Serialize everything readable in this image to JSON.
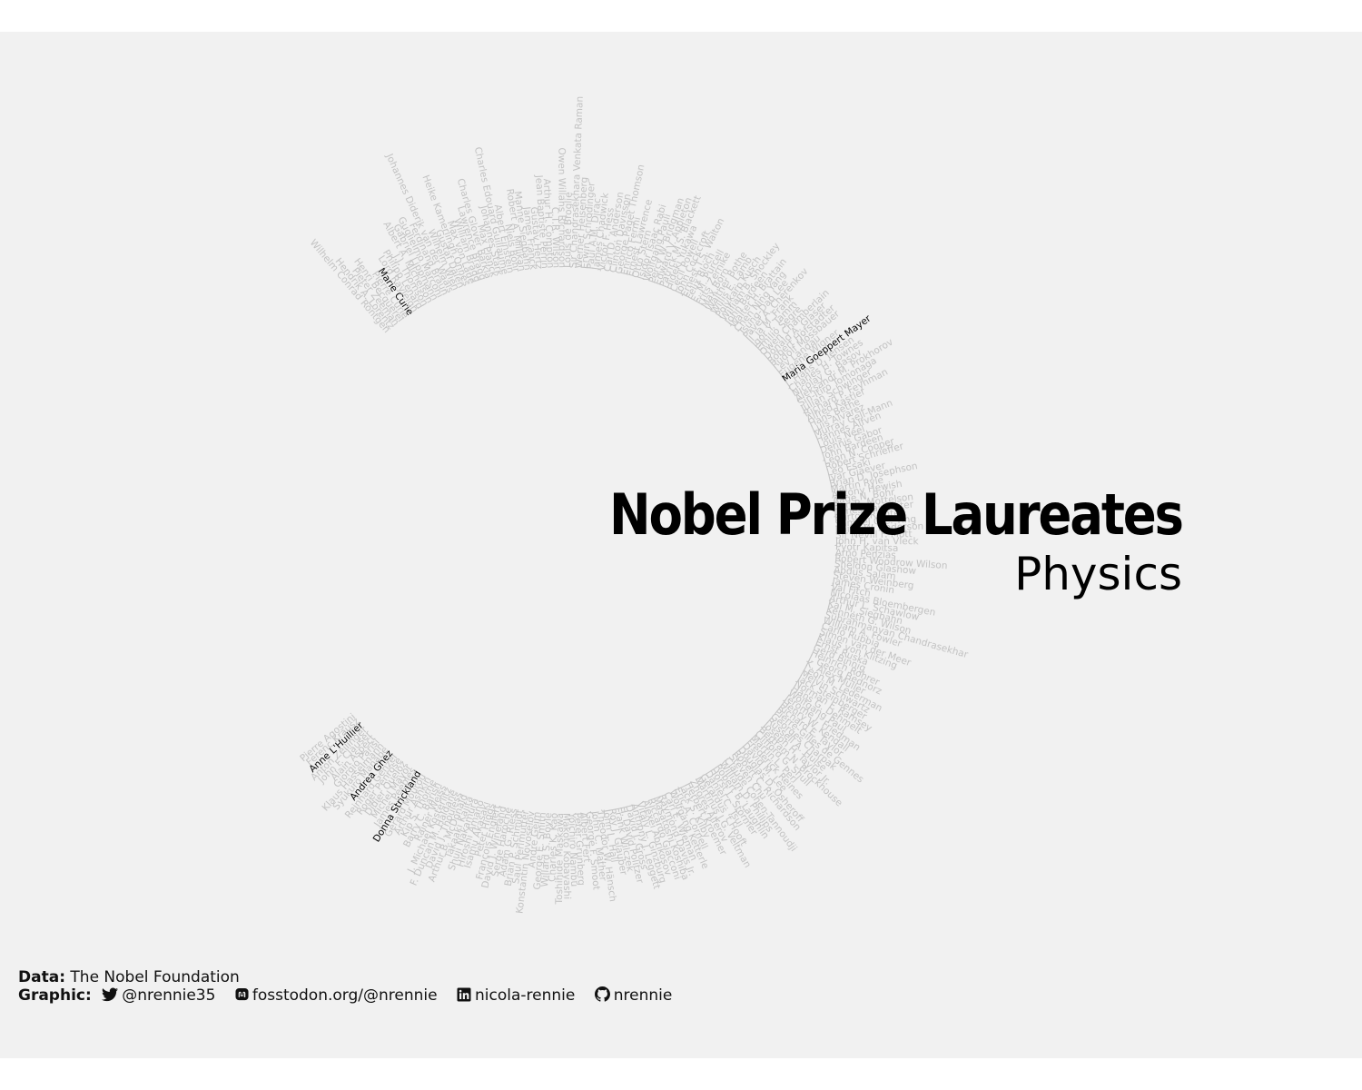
{
  "chart_data": {
    "type": "radial_text",
    "title": "Nobel Prize Laureates",
    "subtitle": "Physics",
    "arc_degrees": [
      -40,
      230
    ],
    "colors": {
      "default": "#c2c2c2",
      "highlight": "#000000",
      "background": "#f1f1f1"
    },
    "laureates_in_order": [
      "Wilhelm Conrad Röntgen",
      "Hendrik A. Lorentz",
      "Pieter Zeeman",
      "Henri Becquerel",
      "Pierre Curie",
      "Marie Curie",
      "Lord Rayleigh",
      "Philipp Lenard",
      "J.J. Thomson",
      "Albert A. Michelson",
      "Gabriel Lippmann",
      "Guglielmo Marconi",
      "Ferdinand Braun",
      "Johannes Diderik van der Waals",
      "Wilhelm Wien",
      "Gustaf Dalén",
      "Heike Kamerlingh Onnes",
      "Max von Laue",
      "William Bragg",
      "Lawrence Bragg",
      "Charles Glover Barkla",
      "Max Planck",
      "Johannes Stark",
      "Charles Edouard Guillaume",
      "Albert Einstein",
      "Niels Bohr",
      "Robert A. Millikan",
      "Manne Siegbahn",
      "James Franck",
      "Gustav Hertz",
      "Jean Baptiste Perrin",
      "Arthur H. Compton",
      "C.T.R. Wilson",
      "Owen Willans Richardson",
      "Louis de Broglie",
      "Sir Chandrasekhara Venkata Raman",
      "Werner Heisenberg",
      "Erwin Schrödinger",
      "Paul A.M. Dirac",
      "James Chadwick",
      "Victor F. Hess",
      "Carl D. Anderson",
      "Clinton Davisson",
      "George Paget Thomson",
      "Enrico Fermi",
      "Ernest Lawrence",
      "Otto Stern",
      "Isidor Isaac Rabi",
      "Wolfgang Pauli",
      "Percy W. Bridgman",
      "Edward V. Appleton",
      "Patrick M.S. Blackett",
      "Hideki Yukawa",
      "Cecil Powell",
      "John Cockcroft",
      "Ernest T.S. Walton",
      "Felix Bloch",
      "E. M. Purcell",
      "Frits Zernike",
      "Max Born",
      "Walther Bothe",
      "Willis E. Lamb",
      "Polykarp Kusch",
      "William B. Shockley",
      "John Bardeen",
      "Walter H. Brattain",
      "Chen Ning Yang",
      "Tsung-Dao Lee",
      "Pavel A. Cherenkov",
      "Il´ja M. Frank",
      "Igor Y. Tamm",
      "Emilio Segrè",
      "Owen Chamberlain",
      "Donald A. Glaser",
      "Robert Hofstadter",
      "Rudolf Mössbauer",
      "Lev Landau",
      "Eugene Wigner",
      "Maria Goeppert Mayer",
      "J. Hans D. Jensen",
      "Charles H. Townes",
      "Nicolay G. Basov",
      "Aleksandr M. Prokhorov",
      "Sin-Itiro Tomonaga",
      "Julian Schwinger",
      "Richard P. Feynman",
      "Alfred Kastler",
      "Hans Bethe",
      "Luis Alvarez",
      "Murray Gell-Mann",
      "Hannes Alfvén",
      "Louis Néel",
      "Dennis Gabor",
      "John Bardeen",
      "Leon N. Cooper",
      "Robert Schrieffer",
      "Leo Esaki",
      "Ivar Giaever",
      "Brian D. Josephson",
      "Martin Ryle",
      "Antony Hewish",
      "Aage N. Bohr",
      "Ben R. Mottelson",
      "James Rainwater",
      "Burton Richter",
      "Samuel C.C. Ting",
      "Philip W. Anderson",
      "Sir Nevill F. Mott",
      "John H. van Vleck",
      "Pyotr Kapitsa",
      "Arno Penzias",
      "Robert Woodrow Wilson",
      "Sheldon Glashow",
      "Abdus Salam",
      "Steven Weinberg",
      "James Cronin",
      "Val Fitch",
      "Nicolaas Bloembergen",
      "Arthur L. Schawlow",
      "Kai M. Siegbahn",
      "Kenneth G. Wilson",
      "Subrahmanyan Chandrasekhar",
      "William A. Fowler",
      "Carlo Rubbia",
      "Simon van der Meer",
      "Klaus von Klitzing",
      "Ernst Ruska",
      "Gerd Binnig",
      "Heinrich Rohrer",
      "J. Georg Bednorz",
      "K. Alex Müller",
      "Leon M. Lederman",
      "Melvin Schwartz",
      "Jack Steinberger",
      "Norman F. Ramsey",
      "Hans G. Dehmelt",
      "Wolfgang Paul",
      "Jerome I. Friedman",
      "Henry W. Kendall",
      "Richard E. Taylor",
      "Pierre-Gilles de Gennes",
      "Georges Charpak",
      "Russell A. Hulse",
      "Joseph H. Taylor Jr.",
      "Bertram N. Brockhouse",
      "Clifford G. Shull",
      "Martin L. Perl",
      "Frederick Reines",
      "David M. Lee",
      "Douglas D. Osheroff",
      "Robert C. Richardson",
      "Steven Chu",
      "Claude Cohen-Tannoudji",
      "William D. Phillips",
      "Robert B. Laughlin",
      "Horst L. Störmer",
      "Daniel C. Tsui",
      "Gerardus 't Hooft",
      "Martinus J.G. Veltman",
      "Zhores Alferov",
      "Herbert Kroemer",
      "Jack S. Kilby",
      "Eric A. Cornell",
      "Wolfgang Ketterle",
      "Carl E. Wieman",
      "Raymond Davis Jr.",
      "Masatoshi Koshiba",
      "Riccardo Giacconi",
      "Alexei Abrikosov",
      "Vitaly L. Ginzburg",
      "Anthony J. Leggett",
      "David J. Gross",
      "H. David Politzer",
      "Frank Wilczek",
      "Roy J. Glauber",
      "John L. Hall",
      "Theodor W. Hänsch",
      "John C. Mather",
      "George F. Smoot",
      "Albert Fert",
      "Peter Grünberg",
      "Yoichiro Nambu",
      "Makoto Kobayashi",
      "Toshihide Maskawa",
      "Charles K. Kao",
      "Willard S. Boyle",
      "George E. Smith",
      "Andre Geim",
      "Konstantin Novoselov",
      "Saul Perlmutter",
      "Brian P. Schmidt",
      "Adam G. Riess",
      "Serge Haroche",
      "David J. Wineland",
      "François Englert",
      "Peter Higgs",
      "Isamu Akasaki",
      "Hiroshi Amano",
      "Shuji Nakamura",
      "Takaaki Kajita",
      "Arthur B. McDonald",
      "David J. Thouless",
      "F. Duncan M. Haldane",
      "J. Michael Kosterlitz",
      "Rainer Weiss",
      "Barry C. Barish",
      "Kip S. Thorne",
      "Arthur Ashkin",
      "Gérard Mourou",
      "Donna Strickland",
      "James Peebles",
      "Michel Mayor",
      "Didier Queloz",
      "Roger Penrose",
      "Reinhard Genzel",
      "Andrea Ghez",
      "Syukuro Manabe",
      "Klaus Hasselmann",
      "Giorgio Parisi",
      "Alain Aspect",
      "John F. Clauser",
      "Anton Zeilinger",
      "Anne L'Huillier",
      "Ferenc Krausz",
      "Pierre Agostini"
    ],
    "highlighted": [
      "Marie Curie",
      "Maria Goeppert Mayer",
      "Donna Strickland",
      "Andrea Ghez",
      "Anne L'Huillier"
    ]
  },
  "caption": {
    "data_label": "Data",
    "data_value": "The Nobel Foundation",
    "graphic_label": "Graphic",
    "twitter": "@nrennie35",
    "mastodon": "fosstodon.org/@nrennie",
    "linkedin": "nicola-rennie",
    "github": "nrennie"
  }
}
